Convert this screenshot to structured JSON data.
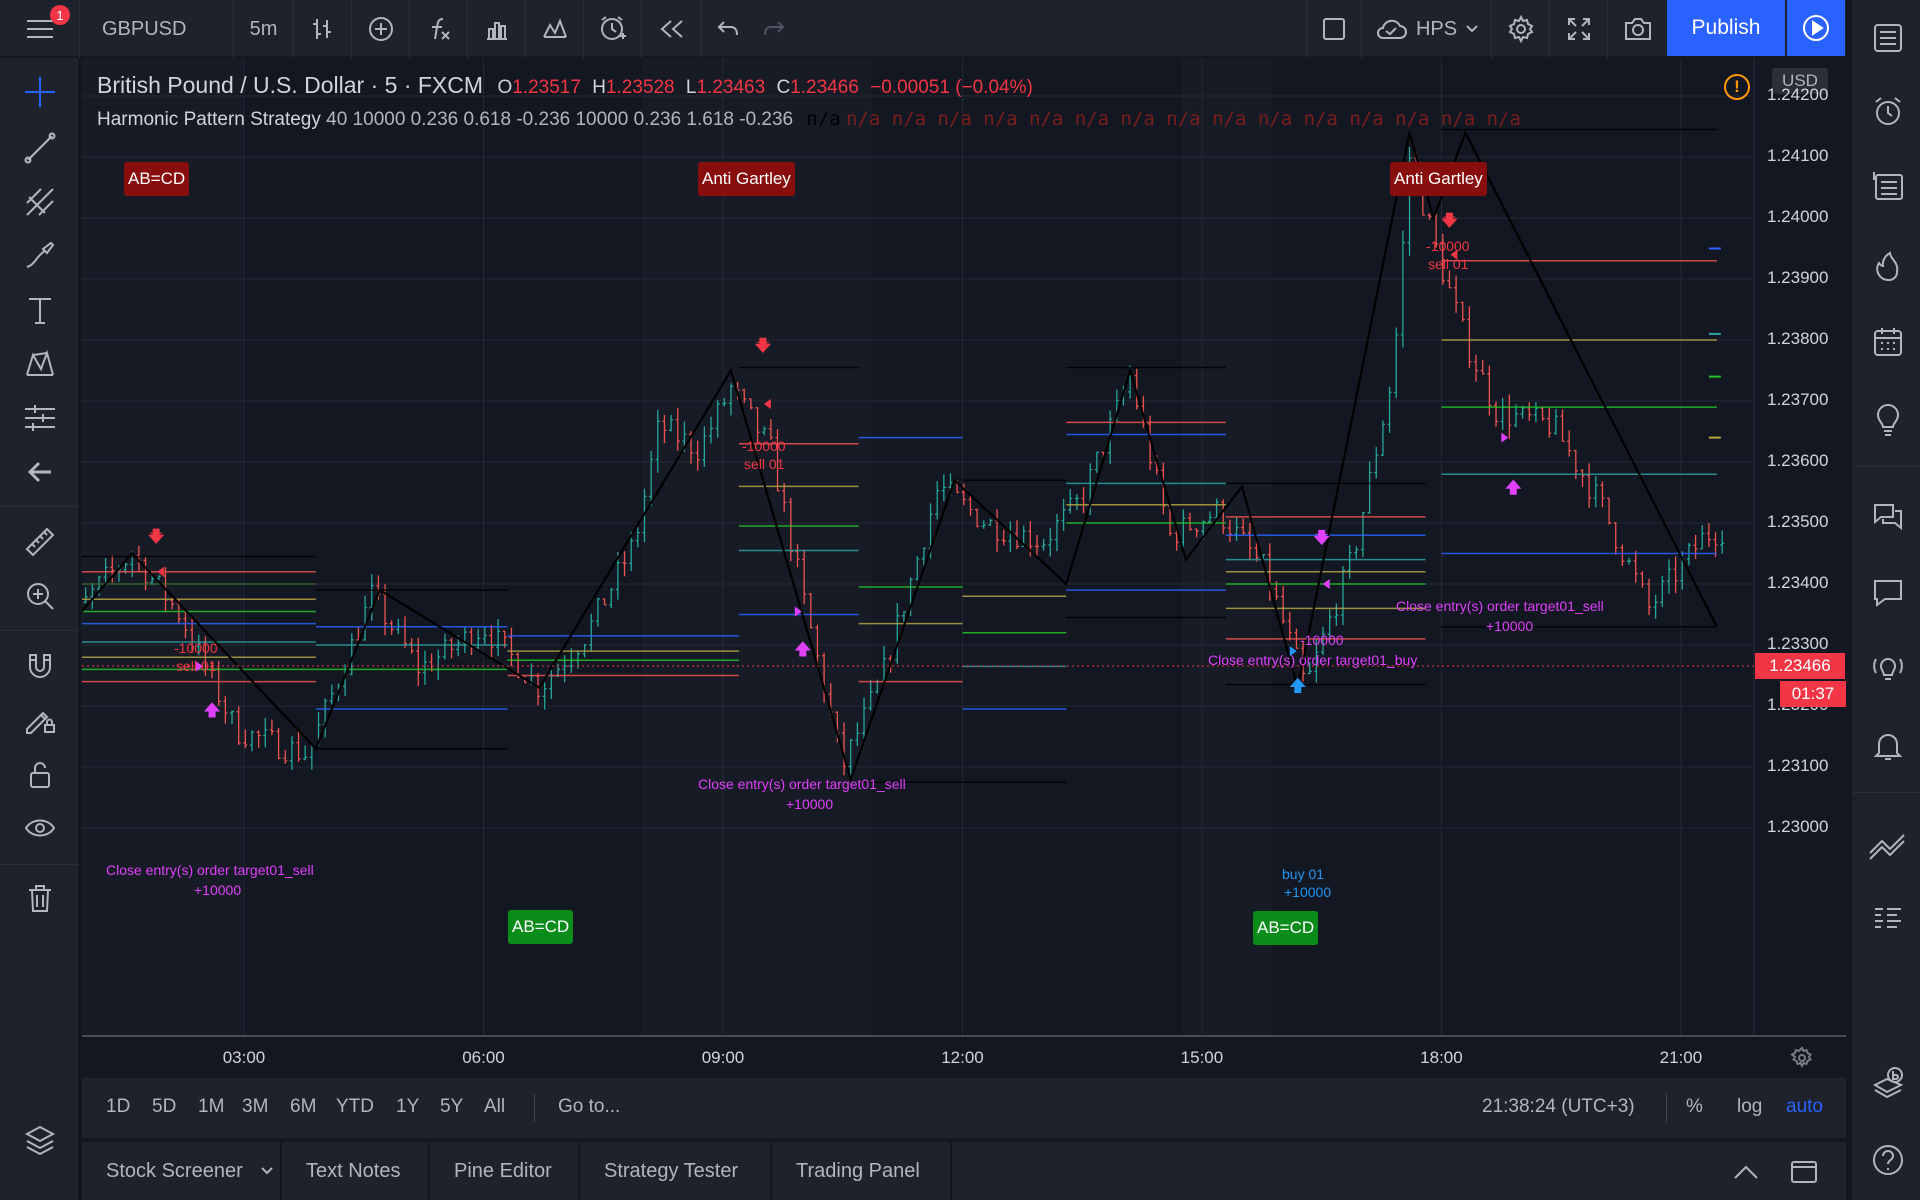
{
  "toolbar": {
    "menu_badge": "1",
    "symbol": "GBPUSD",
    "interval": "5m",
    "layout_name": "HPS",
    "publish_label": "Publish"
  },
  "legend": {
    "title": "British Pound / U.S. Dollar",
    "interval": "5",
    "exchange": "FXCM",
    "o_label": "O",
    "o_value": "1.23517",
    "h_label": "H",
    "h_value": "1.23528",
    "l_label": "L",
    "l_value": "1.23463",
    "c_label": "C",
    "c_value": "1.23466",
    "change": "−0.00051 (−0.04%)",
    "indicator": "Harmonic Pattern Strategy",
    "indicator_params": "40 10000 0.236 0.618 -0.236 10000 0.236 1.618 -0.236",
    "indicator_na_first": "n/a",
    "indicator_na_rest": "n/a n/a n/a n/a n/a n/a n/a n/a n/a n/a n/a n/a n/a n/a n/a"
  },
  "price_axis": {
    "currency": "USD",
    "labels": [
      "1.24200",
      "1.24100",
      "1.24000",
      "1.23900",
      "1.23800",
      "1.23700",
      "1.23600",
      "1.23500",
      "1.23400",
      "1.23300",
      "1.23200",
      "1.23100",
      "1.23000"
    ],
    "last_price": "1.23466",
    "countdown": "01:37"
  },
  "time_axis": {
    "labels": [
      "03:00",
      "06:00",
      "09:00",
      "12:00",
      "15:00",
      "18:00",
      "21:00"
    ]
  },
  "colors": {
    "up": "#26a69a",
    "down": "#ef5350",
    "accent": "#2962ff",
    "pattern_red": "#880e0e",
    "pattern_green": "#0a8c1b",
    "strategy_magenta": "#e040fb",
    "sell_red": "#f23645",
    "buy_blue": "#2196f3"
  },
  "chart_annotations": {
    "patterns": [
      {
        "label": "AB=CD",
        "type": "bearish"
      },
      {
        "label": "Anti Gartley",
        "type": "bearish"
      },
      {
        "label": "Anti Gartley",
        "type": "bearish"
      },
      {
        "label": "AB=CD",
        "type": "bullish"
      },
      {
        "label": "AB=CD",
        "type": "bullish"
      }
    ],
    "orders": [
      {
        "qty": "-10000",
        "name": "sell 01",
        "kind": "sell"
      },
      {
        "qty": "-10000",
        "name": "sell 01",
        "kind": "sell"
      },
      {
        "qty": "-10000",
        "name": "sell 01",
        "kind": "sell"
      },
      {
        "qty": "buy 01",
        "name": "+10000",
        "kind": "buy"
      }
    ],
    "closes": [
      {
        "text": "Close entry(s) order target01_sell",
        "qty": "+10000"
      },
      {
        "text": "Close entry(s) order target01_sell",
        "qty": "+10000"
      },
      {
        "text": "Close entry(s) order target01_buy",
        "qty": "-10000"
      },
      {
        "text": "Close entry(s) order target01_sell",
        "qty": "+10000"
      }
    ]
  },
  "bottom_toolbar": {
    "ranges": [
      "1D",
      "5D",
      "1M",
      "3M",
      "6M",
      "YTD",
      "1Y",
      "5Y",
      "All"
    ],
    "goto": "Go to...",
    "clock": "21:38:24 (UTC+3)",
    "percent": "%",
    "log": "log",
    "auto": "auto"
  },
  "panels": {
    "tabs": [
      "Stock Screener",
      "Text Notes",
      "Pine Editor",
      "Strategy Tester",
      "Trading Panel"
    ]
  }
}
